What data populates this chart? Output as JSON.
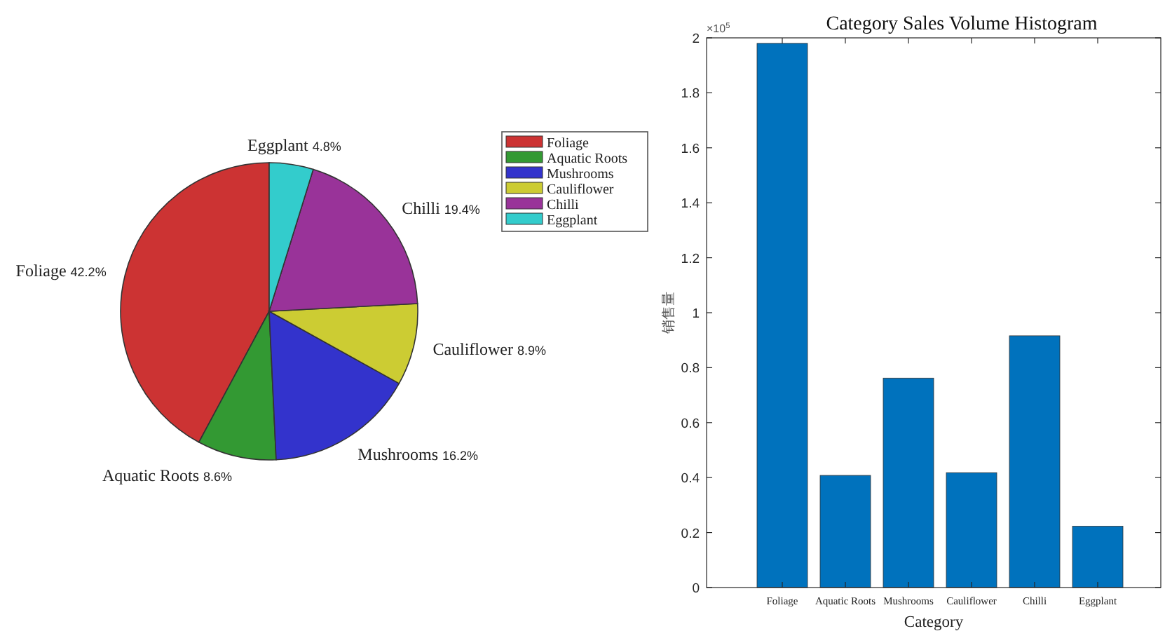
{
  "chart_data": [
    {
      "type": "pie",
      "categories": [
        "Foliage",
        "Aquatic Roots",
        "Mushrooms",
        "Cauliflower",
        "Chilli",
        "Eggplant"
      ],
      "values": [
        42.2,
        8.6,
        16.2,
        8.9,
        19.4,
        4.8
      ],
      "colors": [
        "#cc3333",
        "#339933",
        "#3333cc",
        "#cccc33",
        "#993399",
        "#33cccc"
      ],
      "value_labels": [
        "42.2%",
        "8.6%",
        "16.2%",
        "8.9%",
        "19.4%",
        "4.8%"
      ],
      "legend": "top right"
    },
    {
      "type": "bar",
      "title": "Category Sales Volume Histogram",
      "xlabel": "Category",
      "ylabel": "销售量",
      "categories": [
        "Foliage",
        "Aquatic Roots",
        "Mushrooms",
        "Cauliflower",
        "Chilli",
        "Eggplant"
      ],
      "values": [
        1.98,
        0.408,
        0.762,
        0.418,
        0.916,
        0.223
      ],
      "color": "#0072bd",
      "ylim": [
        0,
        2
      ],
      "yticks": [
        0,
        0.2,
        0.4,
        0.6,
        0.8,
        1,
        1.2,
        1.4,
        1.6,
        1.8,
        2
      ],
      "annotations": [
        "×10$^{5}$"
      ],
      "grid": false
    }
  ]
}
